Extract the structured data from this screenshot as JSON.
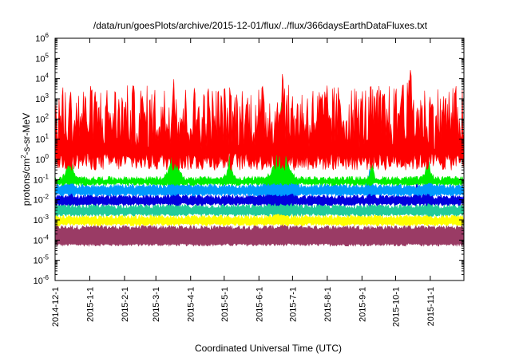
{
  "chart_data": {
    "type": "line",
    "title": "/data/run/goesPlots/archive/2015-12-01/flux/../flux/366daysEarthDataFluxes.txt",
    "xlabel": "Coordinated Universal Time (UTC)",
    "ylabel_prefix": "protons/cm",
    "ylabel_sup": "2",
    "ylabel_suffix": "-s-sr-MeV",
    "yscale": "log",
    "ylim": [
      1e-06,
      1000000.0
    ],
    "xlim": [
      "2014-12-01",
      "2015-12-01"
    ],
    "grid": false,
    "legend": "none",
    "y_ticks": [
      {
        "base": "10",
        "exp": "6",
        "value": 1000000.0
      },
      {
        "base": "10",
        "exp": "5",
        "value": 100000.0
      },
      {
        "base": "10",
        "exp": "4",
        "value": 10000.0
      },
      {
        "base": "10",
        "exp": "3",
        "value": 1000.0
      },
      {
        "base": "10",
        "exp": "2",
        "value": 100.0
      },
      {
        "base": "10",
        "exp": "1",
        "value": 10.0
      },
      {
        "base": "10",
        "exp": "0",
        "value": 1.0
      },
      {
        "base": "10",
        "exp": "-1",
        "value": 0.1
      },
      {
        "base": "10",
        "exp": "-2",
        "value": 0.01
      },
      {
        "base": "10",
        "exp": "-3",
        "value": 0.001
      },
      {
        "base": "10",
        "exp": "-4",
        "value": 0.0001
      },
      {
        "base": "10",
        "exp": "-5",
        "value": 1e-05
      },
      {
        "base": "10",
        "exp": "-6",
        "value": 1e-06
      }
    ],
    "x_ticks": [
      {
        "label": "2014-12-1",
        "date": "2014-12-01"
      },
      {
        "label": "2015-1-1",
        "date": "2015-01-01"
      },
      {
        "label": "2015-2-1",
        "date": "2015-02-01"
      },
      {
        "label": "2015-3-1",
        "date": "2015-03-01"
      },
      {
        "label": "2015-4-1",
        "date": "2015-04-01"
      },
      {
        "label": "2015-5-1",
        "date": "2015-05-01"
      },
      {
        "label": "2015-6-1",
        "date": "2015-06-01"
      },
      {
        "label": "2015-7-1",
        "date": "2015-07-01"
      },
      {
        "label": "2015-8-1",
        "date": "2015-08-01"
      },
      {
        "label": "2015-9-1",
        "date": "2015-09-01"
      },
      {
        "label": "2015-10-1",
        "date": "2015-10-01"
      },
      {
        "label": "2015-11-1",
        "date": "2015-11-01"
      }
    ],
    "series": [
      {
        "color": "#9a3b65",
        "baseline": [
          5e-05,
          0.00045
        ],
        "noise": 0.0,
        "events": [
          {
            "date": "2015-06-22",
            "peak": 0.0006,
            "width_days": 3
          }
        ]
      },
      {
        "color": "#ffff00",
        "baseline": [
          0.0005,
          0.0015
        ],
        "noise": 0.0,
        "events": [
          {
            "date": "2015-06-20",
            "peak": 0.01,
            "width_days": 4
          },
          {
            "date": "2015-10-31",
            "peak": 0.003,
            "width_days": 2
          }
        ]
      },
      {
        "color": "#22cc99",
        "baseline": [
          0.0015,
          0.005
        ],
        "noise": 0.0,
        "events": [
          {
            "date": "2015-06-21",
            "peak": 1.0,
            "width_days": 6
          },
          {
            "date": "2015-10-31",
            "peak": 0.01,
            "width_days": 2
          }
        ]
      },
      {
        "color": "#0000dd",
        "baseline": [
          0.005,
          0.015
        ],
        "noise": 0.0,
        "events": [
          {
            "date": "2014-12-15",
            "peak": 0.3,
            "width_days": 1
          },
          {
            "date": "2015-03-18",
            "peak": 0.3,
            "width_days": 2
          },
          {
            "date": "2015-06-21",
            "peak": 8.0,
            "width_days": 7
          },
          {
            "date": "2015-09-09",
            "peak": 0.1,
            "width_days": 2
          },
          {
            "date": "2015-10-20",
            "peak": 0.1,
            "width_days": 2
          },
          {
            "date": "2015-10-30",
            "peak": 0.3,
            "width_days": 2
          }
        ]
      },
      {
        "color": "#0099ff",
        "baseline": [
          0.015,
          0.05
        ],
        "noise": 0.0,
        "events": [
          {
            "date": "2014-12-14",
            "peak": 1.0,
            "width_days": 2
          },
          {
            "date": "2015-03-17",
            "peak": 1.0,
            "width_days": 3
          },
          {
            "date": "2015-06-21",
            "peak": 40.0,
            "width_days": 8
          },
          {
            "date": "2015-09-08",
            "peak": 0.5,
            "width_days": 2
          },
          {
            "date": "2015-10-31",
            "peak": 1.0,
            "width_days": 2
          }
        ]
      },
      {
        "color": "#00ee00",
        "baseline": [
          0.05,
          0.12
        ],
        "noise": 0.0,
        "events": [
          {
            "date": "2014-12-14",
            "peak": 30.0,
            "width_days": 3
          },
          {
            "date": "2015-03-17",
            "peak": 100.0,
            "width_days": 4
          },
          {
            "date": "2015-05-06",
            "peak": 2.0,
            "width_days": 3
          },
          {
            "date": "2015-06-21",
            "peak": 1000.0,
            "width_days": 6
          },
          {
            "date": "2015-09-10",
            "peak": 1.0,
            "width_days": 2
          },
          {
            "date": "2015-10-30",
            "peak": 2.0,
            "width_days": 3
          }
        ]
      },
      {
        "color": "#ff0000",
        "baseline": [
          0.1,
          5000.0
        ],
        "noise": 1.0,
        "events": [
          {
            "date": "2015-06-22",
            "peak": 30000.0,
            "width_days": 2
          },
          {
            "date": "2015-10-14",
            "peak": 60000.0,
            "width_days": 2
          },
          {
            "date": "2015-03-17",
            "peak": 10000.0,
            "width_days": 2
          },
          {
            "date": "2015-10-07",
            "peak": 10000.0,
            "width_days": 2
          }
        ]
      }
    ]
  }
}
